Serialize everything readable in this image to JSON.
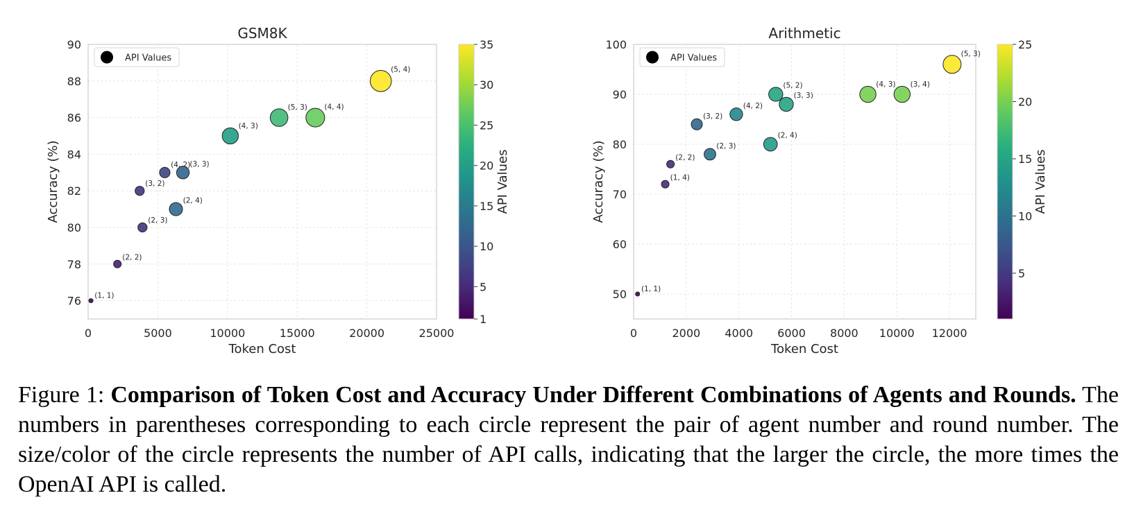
{
  "chart_data": [
    {
      "type": "scatter",
      "title": "GSM8K",
      "xlabel": "Token Cost",
      "ylabel": "Accuracy (%)",
      "xlim": [
        0,
        25000
      ],
      "ylim": [
        75,
        90
      ],
      "xticks": [
        0,
        5000,
        10000,
        15000,
        20000,
        25000
      ],
      "yticks": [
        76,
        78,
        80,
        82,
        84,
        86,
        88,
        90
      ],
      "grid": true,
      "legend": {
        "label": "API Values",
        "placement": "top-left"
      },
      "colorbar": {
        "label": "API Values",
        "range": [
          1,
          35
        ],
        "ticks": [
          1,
          5,
          10,
          15,
          20,
          25,
          30,
          35
        ],
        "colormap": "viridis"
      },
      "points": [
        {
          "label": "(1, 1)",
          "x": 200,
          "y": 76,
          "api": 1
        },
        {
          "label": "(2, 2)",
          "x": 2100,
          "y": 78,
          "api": 4
        },
        {
          "label": "(2, 3)",
          "x": 3900,
          "y": 80,
          "api": 6
        },
        {
          "label": "(3, 2)",
          "x": 3700,
          "y": 82,
          "api": 6
        },
        {
          "label": "(4, 2)",
          "x": 5500,
          "y": 83,
          "api": 8
        },
        {
          "label": "(3, 3)",
          "x": 6800,
          "y": 83,
          "api": 12
        },
        {
          "label": "(2, 4)",
          "x": 6300,
          "y": 81,
          "api": 13
        },
        {
          "label": "(4, 3)",
          "x": 10200,
          "y": 85,
          "api": 20
        },
        {
          "label": "(5, 3)",
          "x": 13700,
          "y": 86,
          "api": 24
        },
        {
          "label": "(4, 4)",
          "x": 16300,
          "y": 86,
          "api": 27
        },
        {
          "label": "(5, 4)",
          "x": 21000,
          "y": 88,
          "api": 35
        }
      ]
    },
    {
      "type": "scatter",
      "title": "Arithmetic",
      "xlabel": "Token Cost",
      "ylabel": "Accuracy (%)",
      "xlim": [
        0,
        13000
      ],
      "ylim": [
        45,
        100
      ],
      "xticks": [
        0,
        2000,
        4000,
        6000,
        8000,
        10000,
        12000
      ],
      "yticks": [
        50,
        60,
        70,
        80,
        90,
        100
      ],
      "grid": true,
      "legend": {
        "label": "API Values",
        "placement": "top-left"
      },
      "colorbar": {
        "label": "API Values",
        "range": [
          1,
          25
        ],
        "ticks": [
          5,
          10,
          15,
          20,
          25
        ],
        "colormap": "viridis"
      },
      "points": [
        {
          "label": "(1, 1)",
          "x": 150,
          "y": 50,
          "api": 1
        },
        {
          "label": "(1, 4)",
          "x": 1200,
          "y": 72,
          "api": 4
        },
        {
          "label": "(2, 2)",
          "x": 1400,
          "y": 76,
          "api": 4
        },
        {
          "label": "(2, 3)",
          "x": 2900,
          "y": 78,
          "api": 10
        },
        {
          "label": "(3, 2)",
          "x": 2400,
          "y": 84,
          "api": 9
        },
        {
          "label": "(4, 2)",
          "x": 3900,
          "y": 86,
          "api": 12
        },
        {
          "label": "(2, 4)",
          "x": 5200,
          "y": 80,
          "api": 14
        },
        {
          "label": "(5, 2)",
          "x": 5400,
          "y": 90,
          "api": 15
        },
        {
          "label": "(3, 3)",
          "x": 5800,
          "y": 88,
          "api": 15
        },
        {
          "label": "(4, 3)",
          "x": 8900,
          "y": 90,
          "api": 20
        },
        {
          "label": "(3, 4)",
          "x": 10200,
          "y": 90,
          "api": 20
        },
        {
          "label": "(5, 3)",
          "x": 12100,
          "y": 96,
          "api": 25
        }
      ]
    }
  ],
  "caption": {
    "figure_label": "Figure 1:",
    "bold_title": "Comparison of Token Cost and Accuracy Under Different Combinations of Agents and Rounds.",
    "body": "The numbers in parentheses corresponding to each circle represent the pair of agent number and round number. The size/color of the circle represents the number of API calls, indicating that the larger the circle, the more times the OpenAI API is called."
  }
}
